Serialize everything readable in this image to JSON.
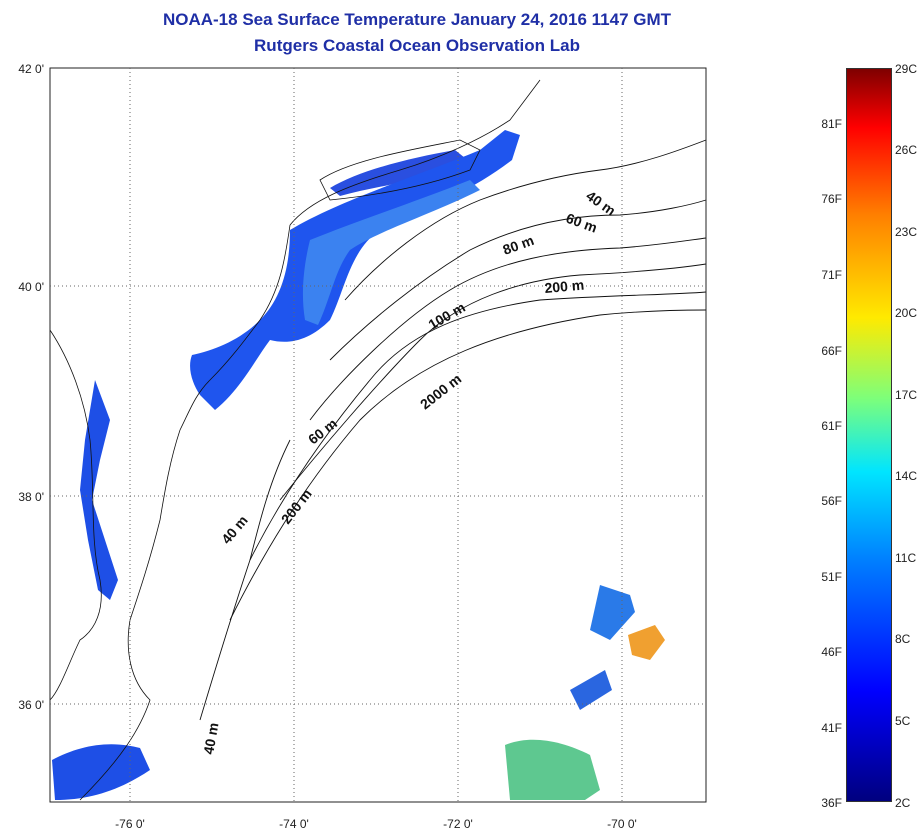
{
  "title": {
    "line1": "NOAA-18 Sea Surface Temperature January 24, 2016 1147 GMT",
    "line2": "Rutgers Coastal Ocean Observation Lab"
  },
  "map": {
    "lon_ticks": [
      "-76 0'",
      "-74 0'",
      "-72 0'",
      "-70 0'"
    ],
    "lat_ticks": [
      "42 0'",
      "40 0'",
      "38 0'",
      "36 0'"
    ],
    "depth_labels": [
      "40 m",
      "60 m",
      "80 m",
      "200 m",
      "100 m",
      "2000 m",
      "60 m",
      "40 m",
      "200 m",
      "40 m"
    ],
    "colors": {
      "land_ocean": "#ffffff",
      "grid": "#555555",
      "title": "#1f2fa6"
    }
  },
  "colorbar": {
    "fahrenheit": [
      "81F",
      "76F",
      "71F",
      "66F",
      "61F",
      "56F",
      "51F",
      "46F",
      "41F",
      "36F"
    ],
    "celsius": [
      "29C",
      "26C",
      "23C",
      "20C",
      "17C",
      "14C",
      "11C",
      "8C",
      "5C",
      "2C"
    ]
  }
}
